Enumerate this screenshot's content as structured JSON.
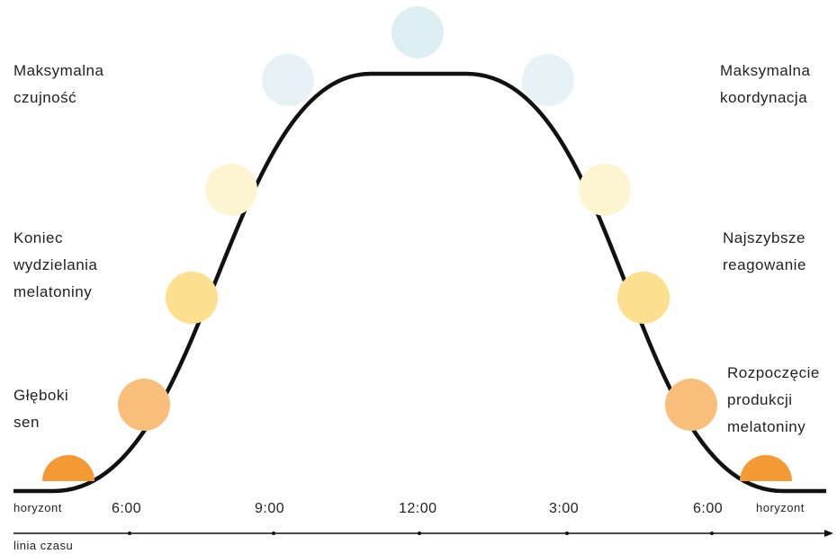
{
  "labels": {
    "deep_sleep": [
      "Głęboki",
      "sen"
    ],
    "melatonin_end": [
      "Koniec",
      "wydzielania",
      "melatoniny"
    ],
    "max_alertness": [
      "Maksymalna",
      "czujność"
    ],
    "max_coordination": [
      "Maksymalna",
      "koordynacja"
    ],
    "fastest_reaction": [
      "Najszybsze",
      "reagowanie"
    ],
    "melatonin_start": [
      "Rozpoczęcie",
      "produkcji",
      "melatoniny"
    ]
  },
  "axis": {
    "horizon_left": "horyzont",
    "horizon_right": "horyzont",
    "timeline": "linia czasu",
    "ticks": [
      "6:00",
      "9:00",
      "12:00",
      "3:00",
      "6:00"
    ]
  },
  "colors": {
    "curve": "#111111",
    "sun_horizon": "#F39A35",
    "sun_low": "#F8BE7A",
    "sun_mid": "#FCE08F",
    "sun_high": "#FDF5D2",
    "sun_sky": "#E6F2F5",
    "sun_zenith": "#DDEEF3"
  }
}
